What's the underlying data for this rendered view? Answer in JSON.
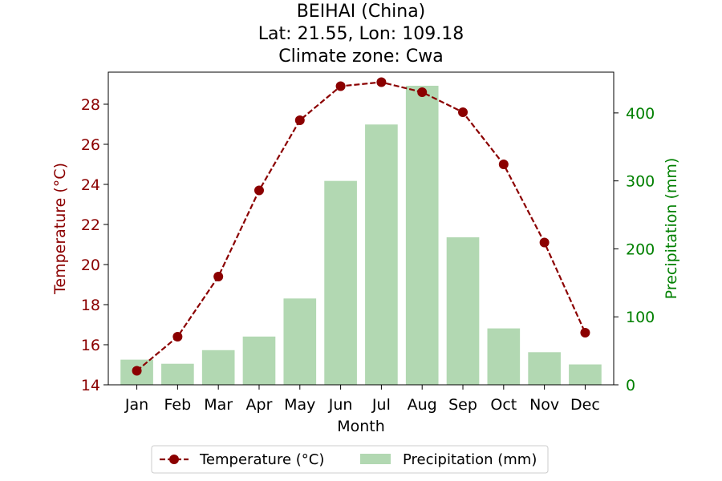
{
  "chart_data": {
    "type": "bar",
    "title_lines": [
      "BEIHAI (China)",
      "Lat: 21.55, Lon: 109.18",
      "Climate zone: Cwa"
    ],
    "categories": [
      "Jan",
      "Feb",
      "Mar",
      "Apr",
      "May",
      "Jun",
      "Jul",
      "Aug",
      "Sep",
      "Oct",
      "Nov",
      "Dec"
    ],
    "xlabel": "Month",
    "ylabel_left": "Temperature (°C)",
    "ylabel_right": "Precipitation (mm)",
    "ylim_left": [
      14,
      29.6
    ],
    "ylim_right": [
      0,
      460
    ],
    "yticks_left": [
      14,
      16,
      18,
      20,
      22,
      24,
      26,
      28
    ],
    "yticks_right": [
      0,
      100,
      200,
      300,
      400
    ],
    "series": [
      {
        "name": "Temperature (°C)",
        "kind": "line",
        "style": "dashed, circle markers",
        "color": "#8b0000",
        "values": [
          14.7,
          16.4,
          19.4,
          23.7,
          27.2,
          28.9,
          29.1,
          28.6,
          27.6,
          25.0,
          21.1,
          16.6
        ]
      },
      {
        "name": "Precipitation (mm)",
        "kind": "bar",
        "color": "#b2d8b2",
        "values": [
          37,
          31,
          51,
          71,
          127,
          300,
          383,
          440,
          217,
          83,
          48,
          30
        ]
      }
    ],
    "left_axis_color": "#8b0000",
    "right_axis_color": "#008000",
    "legend_position": "bottom-center",
    "grid": false
  }
}
